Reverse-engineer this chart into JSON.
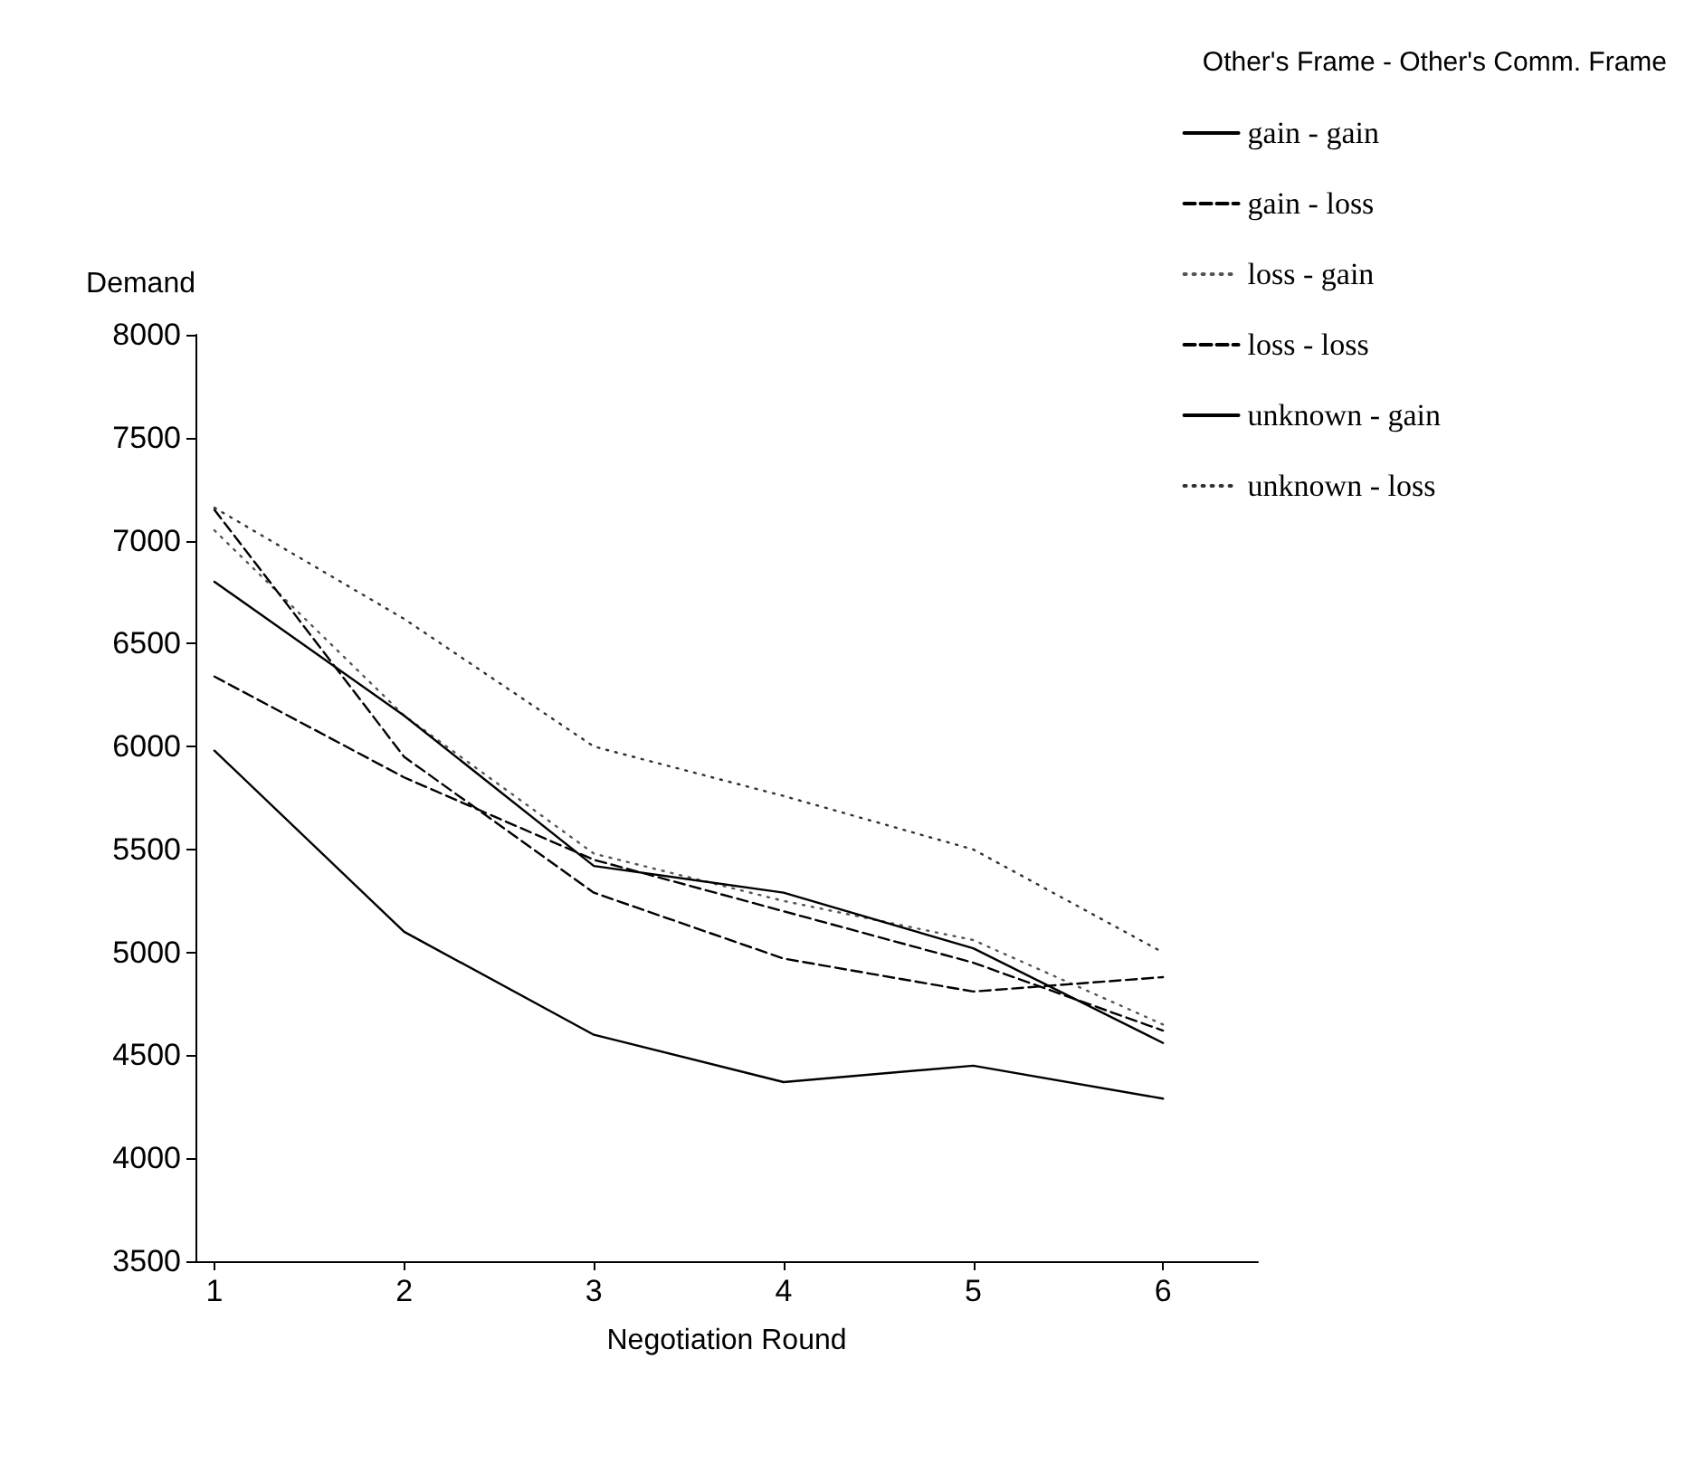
{
  "chart_data": {
    "type": "line",
    "xlabel": "Negotiation Round",
    "ylabel": "Demand",
    "legend_title": "Other's Frame - Other's Comm. Frame",
    "x": [
      1,
      2,
      3,
      4,
      5,
      6
    ],
    "series": [
      {
        "name": "gain - gain",
        "color": "#000000",
        "line_style": "solid",
        "values": [
          5980,
          5100,
          4600,
          4370,
          4450,
          4290
        ]
      },
      {
        "name": "gain - loss",
        "color": "#000000",
        "line_style": "dashed",
        "values": [
          6340,
          5850,
          5450,
          5200,
          4950,
          4620
        ]
      },
      {
        "name": "loss - gain",
        "color": "#555555",
        "line_style": "dotted",
        "values": [
          7050,
          6150,
          5480,
          5250,
          5060,
          4650
        ]
      },
      {
        "name": "loss - loss",
        "color": "#000000",
        "line_style": "dashed",
        "values": [
          7150,
          5950,
          5290,
          4970,
          4810,
          4880
        ]
      },
      {
        "name": "unknown - gain",
        "color": "#000000",
        "line_style": "solid",
        "values": [
          6800,
          6150,
          5420,
          5290,
          5020,
          4560
        ]
      },
      {
        "name": "unknown - loss",
        "color": "#333333",
        "line_style": "dotted",
        "values": [
          7160,
          6620,
          6000,
          5760,
          5500,
          5000
        ]
      }
    ],
    "xlim": [
      0.9,
      6.5
    ],
    "xticks": [
      1,
      2,
      3,
      4,
      5,
      6
    ],
    "ylim": [
      3500,
      8000
    ],
    "yticks": [
      3500,
      4000,
      4500,
      5000,
      5500,
      6000,
      6500,
      7000,
      7500,
      8000
    ],
    "grid": false,
    "legend": "top right",
    "marker": "none"
  }
}
